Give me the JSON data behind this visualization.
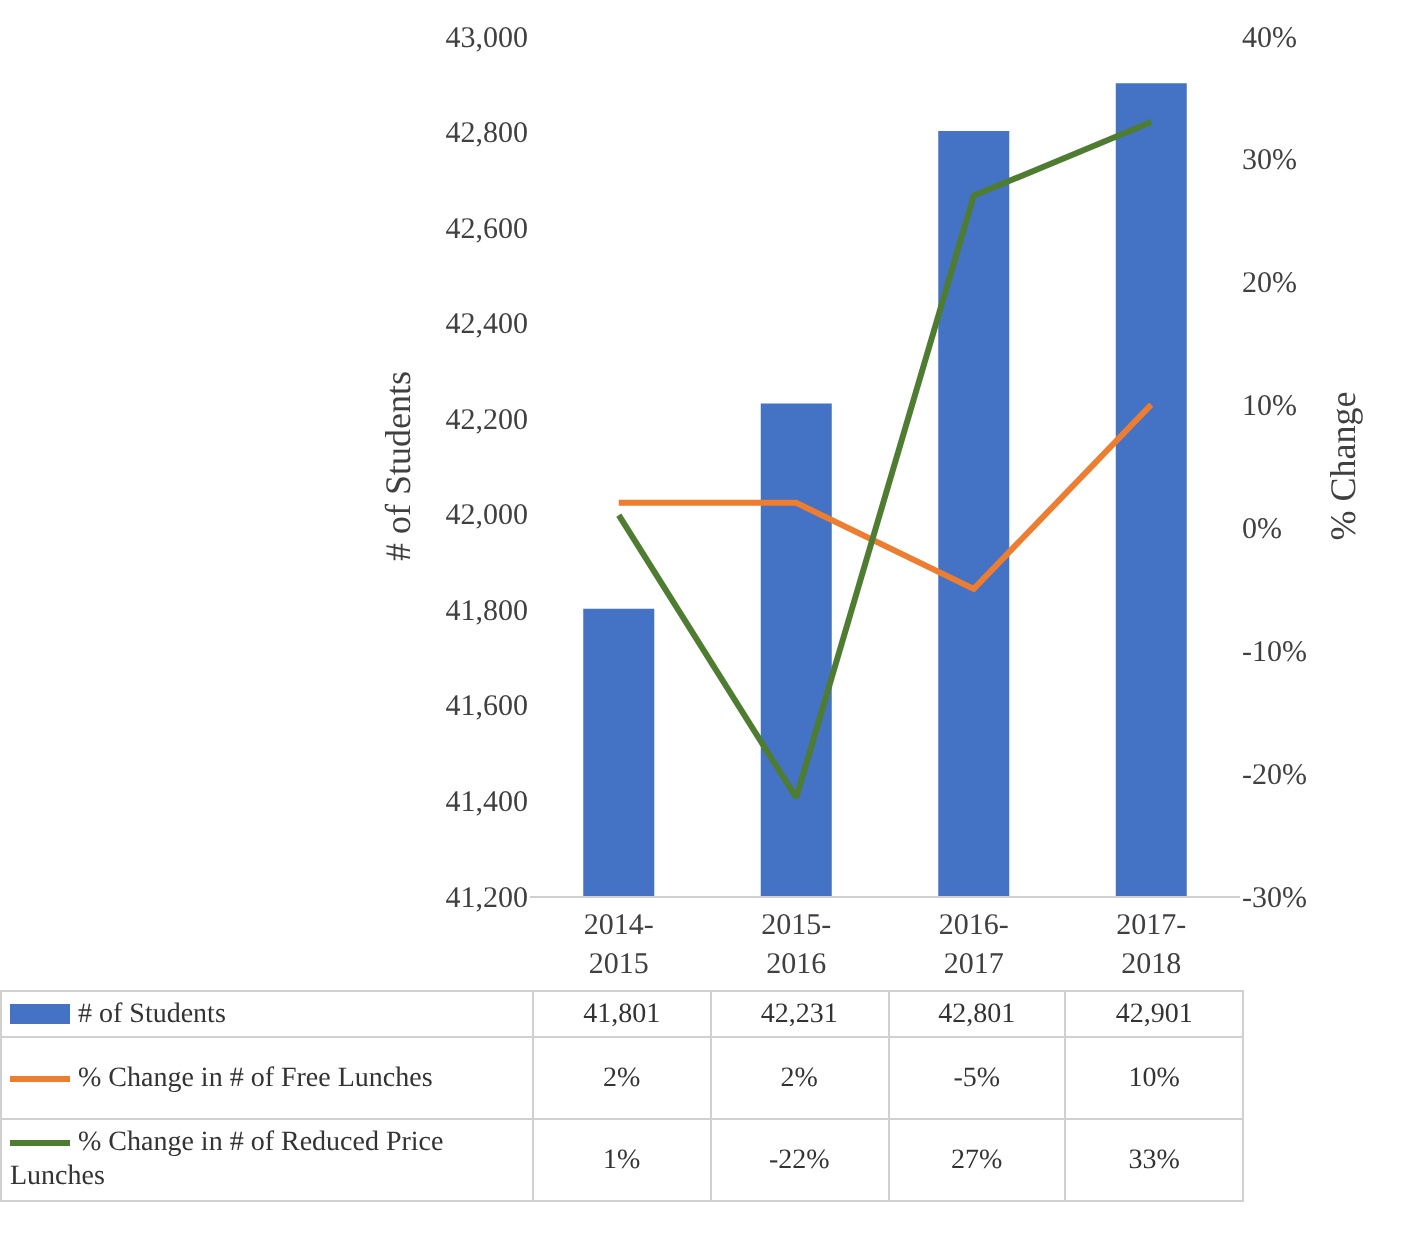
{
  "chart_data": {
    "type": "bar",
    "categories": [
      "2014-2015",
      "2015-2016",
      "2016-2017",
      "2017-2018"
    ],
    "ylabel": "# of Students",
    "y2label": "% Change",
    "ylim": [
      41200,
      43000
    ],
    "yticks": [
      {
        "value": 41200,
        "label": "41,200"
      },
      {
        "value": 41400,
        "label": "41,400"
      },
      {
        "value": 41600,
        "label": "41,600"
      },
      {
        "value": 41800,
        "label": "41,800"
      },
      {
        "value": 42000,
        "label": "42,000"
      },
      {
        "value": 42200,
        "label": "42,200"
      },
      {
        "value": 42400,
        "label": "42,400"
      },
      {
        "value": 42600,
        "label": "42,600"
      },
      {
        "value": 42800,
        "label": "42,800"
      },
      {
        "value": 43000,
        "label": "43,000"
      }
    ],
    "y2lim": [
      -30,
      40
    ],
    "y2ticks": [
      {
        "value": -30,
        "label": "-30%"
      },
      {
        "value": -20,
        "label": "-20%"
      },
      {
        "value": -10,
        "label": "-10%"
      },
      {
        "value": 0,
        "label": "0%"
      },
      {
        "value": 10,
        "label": "10%"
      },
      {
        "value": 20,
        "label": "20%"
      },
      {
        "value": 30,
        "label": "30%"
      },
      {
        "value": 40,
        "label": "40%"
      }
    ],
    "legend": "bottom",
    "series": [
      {
        "name": "# of Students",
        "color": "#4472c4",
        "values": [
          41801,
          42231,
          42801,
          42901
        ],
        "value_labels": [
          "41,801",
          "42,231",
          "42,801",
          "42,901"
        ]
      },
      {
        "name": "% Change in # of Free Lunches",
        "type": "line",
        "axis": "y2",
        "color": "#ed7d31",
        "values": [
          2,
          2,
          -5,
          10
        ],
        "value_labels": [
          "2%",
          "2%",
          "-5%",
          "10%"
        ]
      },
      {
        "name": "% Change in # of Reduced Price Lunches",
        "type": "line",
        "axis": "y2",
        "color": "#4e7d32",
        "values": [
          1,
          -22,
          27,
          33
        ],
        "value_labels": [
          "1%",
          "-22%",
          "27%",
          "33%"
        ]
      }
    ]
  }
}
